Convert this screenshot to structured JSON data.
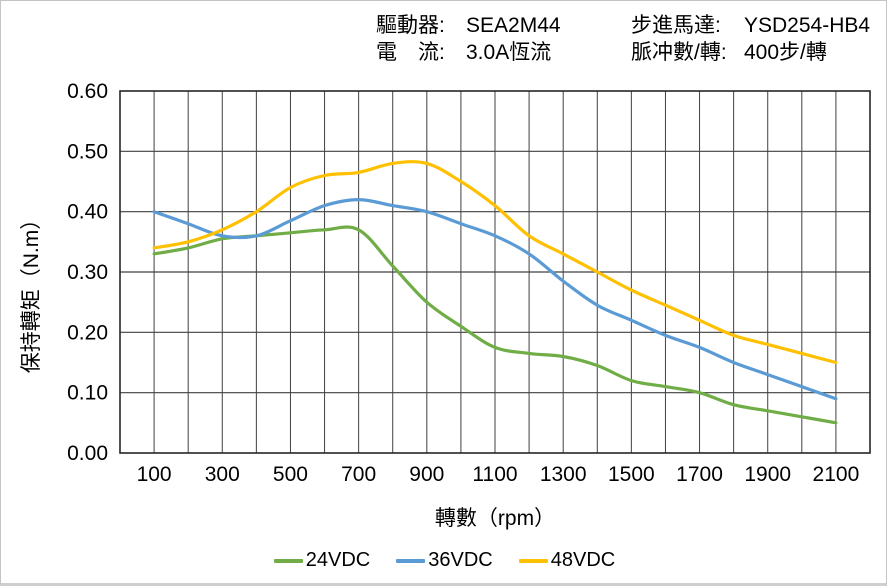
{
  "header": {
    "col1": {
      "rows": [
        {
          "label": "驅動器:",
          "value": "SEA2M44"
        },
        {
          "label": "電　流:",
          "value": "3.0A恆流"
        }
      ]
    },
    "col2": {
      "rows": [
        {
          "label": "步進馬達:",
          "value": "YSD254-HB4"
        },
        {
          "label": "脈冲數/轉:",
          "value": "400步/轉"
        }
      ]
    }
  },
  "chart_data": {
    "type": "line",
    "title": "",
    "xlabel": "轉數（rpm）",
    "ylabel": "保持轉矩（N.m）",
    "grid": true,
    "legend_position": "bottom",
    "x": [
      100,
      200,
      300,
      400,
      500,
      600,
      700,
      800,
      900,
      1000,
      1100,
      1200,
      1300,
      1400,
      1500,
      1600,
      1700,
      1800,
      1900,
      2000,
      2100
    ],
    "series": [
      {
        "name": "24VDC",
        "color": "#70AD47",
        "values": [
          0.33,
          0.34,
          0.355,
          0.36,
          0.365,
          0.37,
          0.37,
          0.31,
          0.25,
          0.21,
          0.175,
          0.165,
          0.16,
          0.145,
          0.12,
          0.11,
          0.1,
          0.08,
          0.07,
          0.06,
          0.05
        ]
      },
      {
        "name": "36VDC",
        "color": "#5B9BD5",
        "values": [
          0.4,
          0.38,
          0.36,
          0.36,
          0.385,
          0.41,
          0.42,
          0.41,
          0.4,
          0.38,
          0.36,
          0.33,
          0.285,
          0.245,
          0.22,
          0.195,
          0.175,
          0.15,
          0.13,
          0.11,
          0.09
        ]
      },
      {
        "name": "48VDC",
        "color": "#FFC000",
        "values": [
          0.34,
          0.35,
          0.37,
          0.4,
          0.44,
          0.46,
          0.465,
          0.48,
          0.48,
          0.45,
          0.41,
          0.36,
          0.33,
          0.3,
          0.27,
          0.245,
          0.22,
          0.195,
          0.18,
          0.165,
          0.15
        ]
      }
    ],
    "x_axis": {
      "min": 0,
      "max": 2200,
      "grid_step": 100,
      "tick_start": 100,
      "tick_end": 2100,
      "tick_step": 200
    },
    "y_axis": {
      "min": 0.0,
      "max": 0.6,
      "grid_step": 0.1,
      "decimals": 2
    },
    "colors": {
      "gridline": "#404040",
      "border": "#262626",
      "text": "#000000"
    }
  }
}
